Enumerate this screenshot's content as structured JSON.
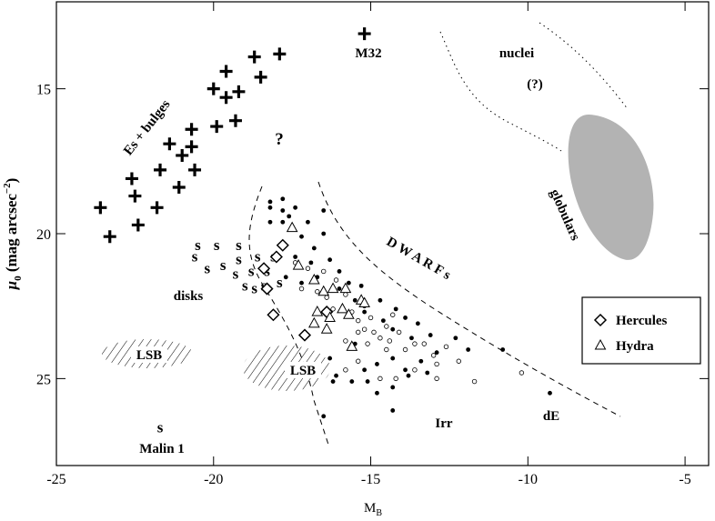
{
  "chart_data": {
    "type": "scatter",
    "x_label": {
      "main": "M",
      "subscript": "B"
    },
    "y_label": {
      "main": "μ",
      "subscript": "0",
      "rest": " (mag arcsec",
      "superscript": "−2",
      "end": ")"
    },
    "xlim": [
      -25,
      -4.25
    ],
    "ylim": [
      12,
      28
    ],
    "y_inverted": true,
    "xticks": [
      -25,
      -20,
      -15,
      -10,
      -5
    ],
    "yticks": [
      15,
      20,
      25
    ],
    "annotations": [
      "Es + bulges",
      "disks",
      "M32",
      "?",
      "nuclei",
      "(?)",
      "D W A R F s",
      "globulars",
      "LSB",
      "LSB",
      "Irr",
      "dE",
      "Malin 1"
    ],
    "legend_position": "right",
    "series": [
      {
        "marker": "plus",
        "color": "#000000",
        "x": [
          -23.6,
          -23.3,
          -22.6,
          -22.5,
          -22.4,
          -21.8,
          -21.7,
          -21.4,
          -21.0,
          -21.1,
          -20.7,
          -20.7,
          -20.6,
          -20.0,
          -19.6,
          -19.6,
          -19.2,
          -19.9,
          -19.3,
          -18.7,
          -18.5,
          -17.9,
          -15.2
        ],
        "y": [
          19.1,
          20.1,
          18.1,
          18.7,
          19.7,
          19.1,
          17.8,
          16.9,
          17.3,
          18.4,
          16.4,
          17.0,
          17.8,
          15.0,
          14.4,
          15.3,
          15.1,
          16.3,
          16.1,
          13.9,
          14.6,
          13.8,
          13.1
        ]
      },
      {
        "marker": "s",
        "color": "#000000",
        "x": [
          -20.6,
          -20.2,
          -19.7,
          -19.2,
          -18.6,
          -18.1,
          -20.5,
          -19.9,
          -19.2,
          -19.3,
          -18.8,
          -18.3,
          -19.0,
          -18.4,
          -17.9,
          -18.7,
          -21.7
        ],
        "y": [
          20.8,
          21.2,
          21.1,
          20.9,
          20.8,
          20.8,
          20.4,
          20.4,
          20.4,
          21.4,
          21.3,
          21.3,
          21.8,
          21.8,
          21.7,
          21.9,
          26.7
        ]
      },
      {
        "marker": "filled-circle",
        "color": "#000000",
        "x": [
          -18.2,
          -17.8,
          -18.2,
          -17.8,
          -17.4,
          -18.2,
          -17.8,
          -17.6,
          -17.0,
          -16.5,
          -16.5,
          -16.8,
          -16.9,
          -17.2,
          -17.4,
          -17.7,
          -17.2,
          -16.7,
          -16.3,
          -16.0,
          -16.0,
          -15.7,
          -15.5,
          -15.2,
          -15.3,
          -15.2,
          -14.7,
          -14.6,
          -14.2,
          -14.3,
          -13.9,
          -13.7,
          -13.5,
          -13.1,
          -12.9,
          -12.3,
          -11.9,
          -13.4,
          -13.2,
          -13.9,
          -14.3,
          -14.8,
          -15.2,
          -15.5,
          -16.3,
          -16.1,
          -15.6,
          -15.1,
          -14.8,
          -14.3,
          -13.8,
          -16.2,
          -10.8,
          -9.3,
          -16.5,
          -14.3
        ],
        "y": [
          18.9,
          18.8,
          19.1,
          19.2,
          19.1,
          19.6,
          19.6,
          19.4,
          19.6,
          19.2,
          20.0,
          20.5,
          21.0,
          20.1,
          20.8,
          21.5,
          21.7,
          21.5,
          20.9,
          21.3,
          21.9,
          21.7,
          22.3,
          22.5,
          21.8,
          22.7,
          22.3,
          23.0,
          22.6,
          23.3,
          22.9,
          23.6,
          23.1,
          23.5,
          24.1,
          23.6,
          24.0,
          24.4,
          24.8,
          24.7,
          24.3,
          24.5,
          24.7,
          23.8,
          24.3,
          24.9,
          25.1,
          25.1,
          25.5,
          25.3,
          24.9,
          25.1,
          24.0,
          25.5,
          26.3,
          26.1
        ]
      },
      {
        "marker": "open-circle",
        "color": "#000000",
        "x": [
          -17.4,
          -17.0,
          -17.2,
          -16.7,
          -16.5,
          -16.4,
          -16.1,
          -15.8,
          -15.6,
          -15.4,
          -15.0,
          -14.9,
          -14.5,
          -14.4,
          -14.1,
          -13.9,
          -13.6,
          -13.3,
          -13.0,
          -12.6,
          -12.9,
          -14.5,
          -14.7,
          -15.1,
          -15.4,
          -15.8,
          -15.8,
          -15.4,
          -14.7,
          -14.2,
          -13.6,
          -12.2,
          -11.7,
          -10.2,
          -12.9,
          -15.2,
          -14.3,
          -16.2
        ],
        "y": [
          21.0,
          21.2,
          21.9,
          22.0,
          21.3,
          22.2,
          21.6,
          22.1,
          22.7,
          23.0,
          22.9,
          23.4,
          23.2,
          23.7,
          23.4,
          24.0,
          23.8,
          23.8,
          24.2,
          23.9,
          24.5,
          24.0,
          23.6,
          23.8,
          23.4,
          23.7,
          24.7,
          24.4,
          25.0,
          25.0,
          24.7,
          24.4,
          25.1,
          24.8,
          25.0,
          23.3,
          22.8,
          22.6
        ]
      },
      {
        "name": "Hercules",
        "marker": "diamond",
        "color": "#000000",
        "x": [
          -17.8,
          -18.0,
          -18.4,
          -18.3,
          -18.1,
          -16.4,
          -17.1
        ],
        "y": [
          20.4,
          20.8,
          21.2,
          21.9,
          22.8,
          22.7,
          23.5
        ]
      },
      {
        "name": "Hydra",
        "marker": "triangle",
        "color": "#000000",
        "x": [
          -17.5,
          -17.3,
          -16.8,
          -16.5,
          -16.2,
          -15.8,
          -15.3,
          -15.2,
          -15.9,
          -15.7,
          -16.7,
          -16.8,
          -16.3,
          -16.4,
          -15.6
        ],
        "y": [
          19.8,
          21.1,
          21.6,
          22.0,
          21.9,
          21.9,
          22.3,
          22.4,
          22.6,
          22.8,
          22.7,
          23.1,
          22.9,
          23.3,
          23.9
        ]
      }
    ]
  }
}
